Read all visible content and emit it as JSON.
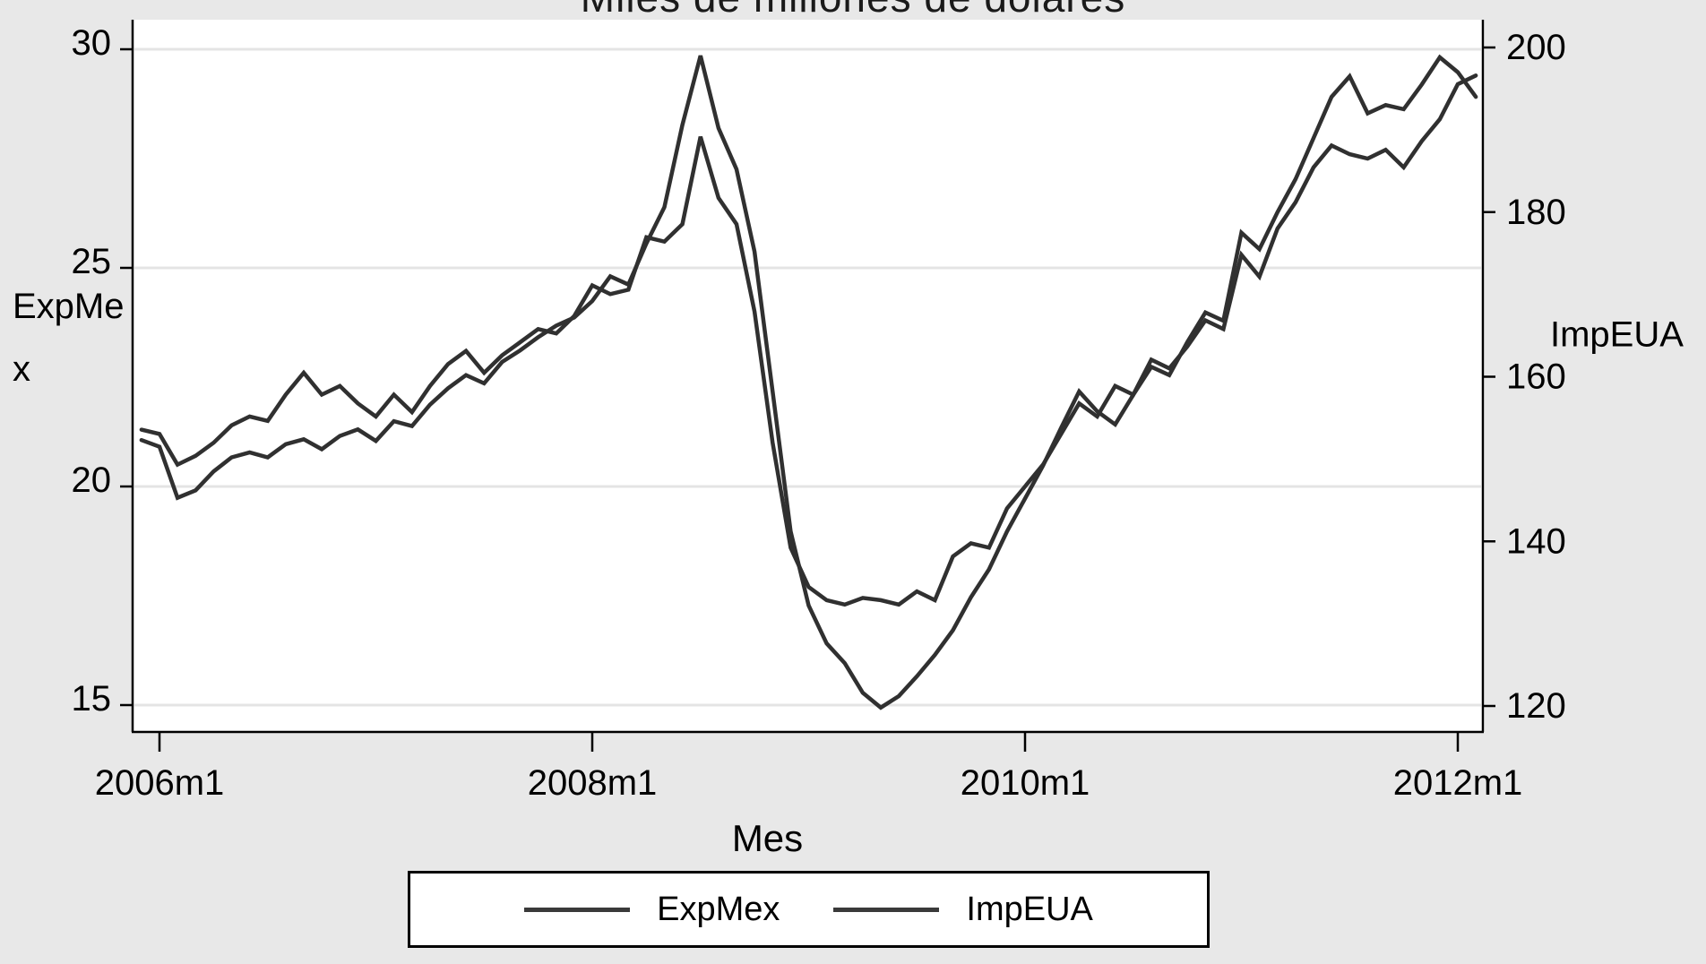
{
  "title": "Miles de millones de dólares",
  "axes": {
    "x": {
      "label": "Mes",
      "tick_labels": [
        "2006m1",
        "2008m1",
        "2010m1",
        "2012m1"
      ]
    },
    "y_left": {
      "label_line1": "ExpMe",
      "label_line2": "x",
      "tick_labels": [
        "30",
        "25",
        "20",
        "15"
      ],
      "tick_values": [
        30,
        25,
        20,
        15
      ]
    },
    "y_right": {
      "label": "ImpEUA",
      "tick_labels": [
        "200",
        "180",
        "160",
        "140",
        "120"
      ],
      "tick_values": [
        200,
        180,
        160,
        140,
        120
      ]
    }
  },
  "legend": {
    "entries": [
      {
        "label": "ExpMex"
      },
      {
        "label": "ImpEUA"
      }
    ]
  },
  "colors": {
    "line": "#303030",
    "grid": "#e4e4e4",
    "axis": "#000000",
    "background": "#e8e8e8",
    "plot_background": "#ffffff"
  },
  "chart_data": {
    "type": "line",
    "title": "Miles de millones de dólares",
    "xlabel": "Mes",
    "x_start": "2005m12",
    "x_frequency": "monthly",
    "x_tick_positions_months": [
      1,
      25,
      49,
      73
    ],
    "ylim_left": [
      15,
      30
    ],
    "ylim_right": [
      120,
      200
    ],
    "grid": "horizontal-left-ticks",
    "legend_position": "bottom",
    "series": [
      {
        "name": "ExpMex",
        "axis": "left",
        "values": [
          21.3,
          21.2,
          20.5,
          20.7,
          21.0,
          21.4,
          21.6,
          21.5,
          22.1,
          22.6,
          22.1,
          22.3,
          21.9,
          21.6,
          22.1,
          21.7,
          22.3,
          22.8,
          23.1,
          22.6,
          23.0,
          23.3,
          23.6,
          23.5,
          23.9,
          24.6,
          24.4,
          24.5,
          25.7,
          25.6,
          26.0,
          28.0,
          26.6,
          26.0,
          24.0,
          21.0,
          18.6,
          17.7,
          17.4,
          17.3,
          17.45,
          17.4,
          17.3,
          17.6,
          17.4,
          18.4,
          18.7,
          18.6,
          19.5,
          20.0,
          20.5,
          21.2,
          21.9,
          21.6,
          22.3,
          22.1,
          22.9,
          22.7,
          23.2,
          23.8,
          23.6,
          25.3,
          24.8,
          25.9,
          26.5,
          27.3,
          27.8,
          27.6,
          27.5,
          27.7,
          27.3,
          27.9,
          28.4,
          29.2,
          29.4
        ]
      },
      {
        "name": "ImpEUA",
        "axis": "right",
        "values": [
          152.3,
          151.5,
          145.3,
          146.2,
          148.5,
          150.2,
          150.8,
          150.2,
          151.8,
          152.4,
          151.2,
          152.8,
          153.6,
          152.2,
          154.6,
          154.0,
          156.6,
          158.6,
          160.2,
          159.2,
          161.8,
          163.2,
          164.8,
          166.2,
          167.2,
          169.2,
          172.2,
          171.2,
          176.2,
          180.6,
          190.6,
          199.0,
          190.2,
          185.2,
          175.2,
          158.2,
          141.2,
          132.2,
          127.6,
          125.2,
          121.6,
          119.8,
          121.2,
          123.6,
          126.2,
          129.2,
          133.2,
          136.6,
          141.2,
          145.2,
          149.2,
          153.8,
          158.2,
          155.8,
          154.2,
          157.8,
          161.2,
          160.2,
          164.2,
          167.8,
          166.8,
          177.5,
          175.5,
          180.0,
          184.0,
          189.0,
          194.0,
          196.5,
          192.0,
          193.0,
          192.5,
          195.5,
          198.8,
          197.0,
          194.0
        ]
      }
    ]
  }
}
